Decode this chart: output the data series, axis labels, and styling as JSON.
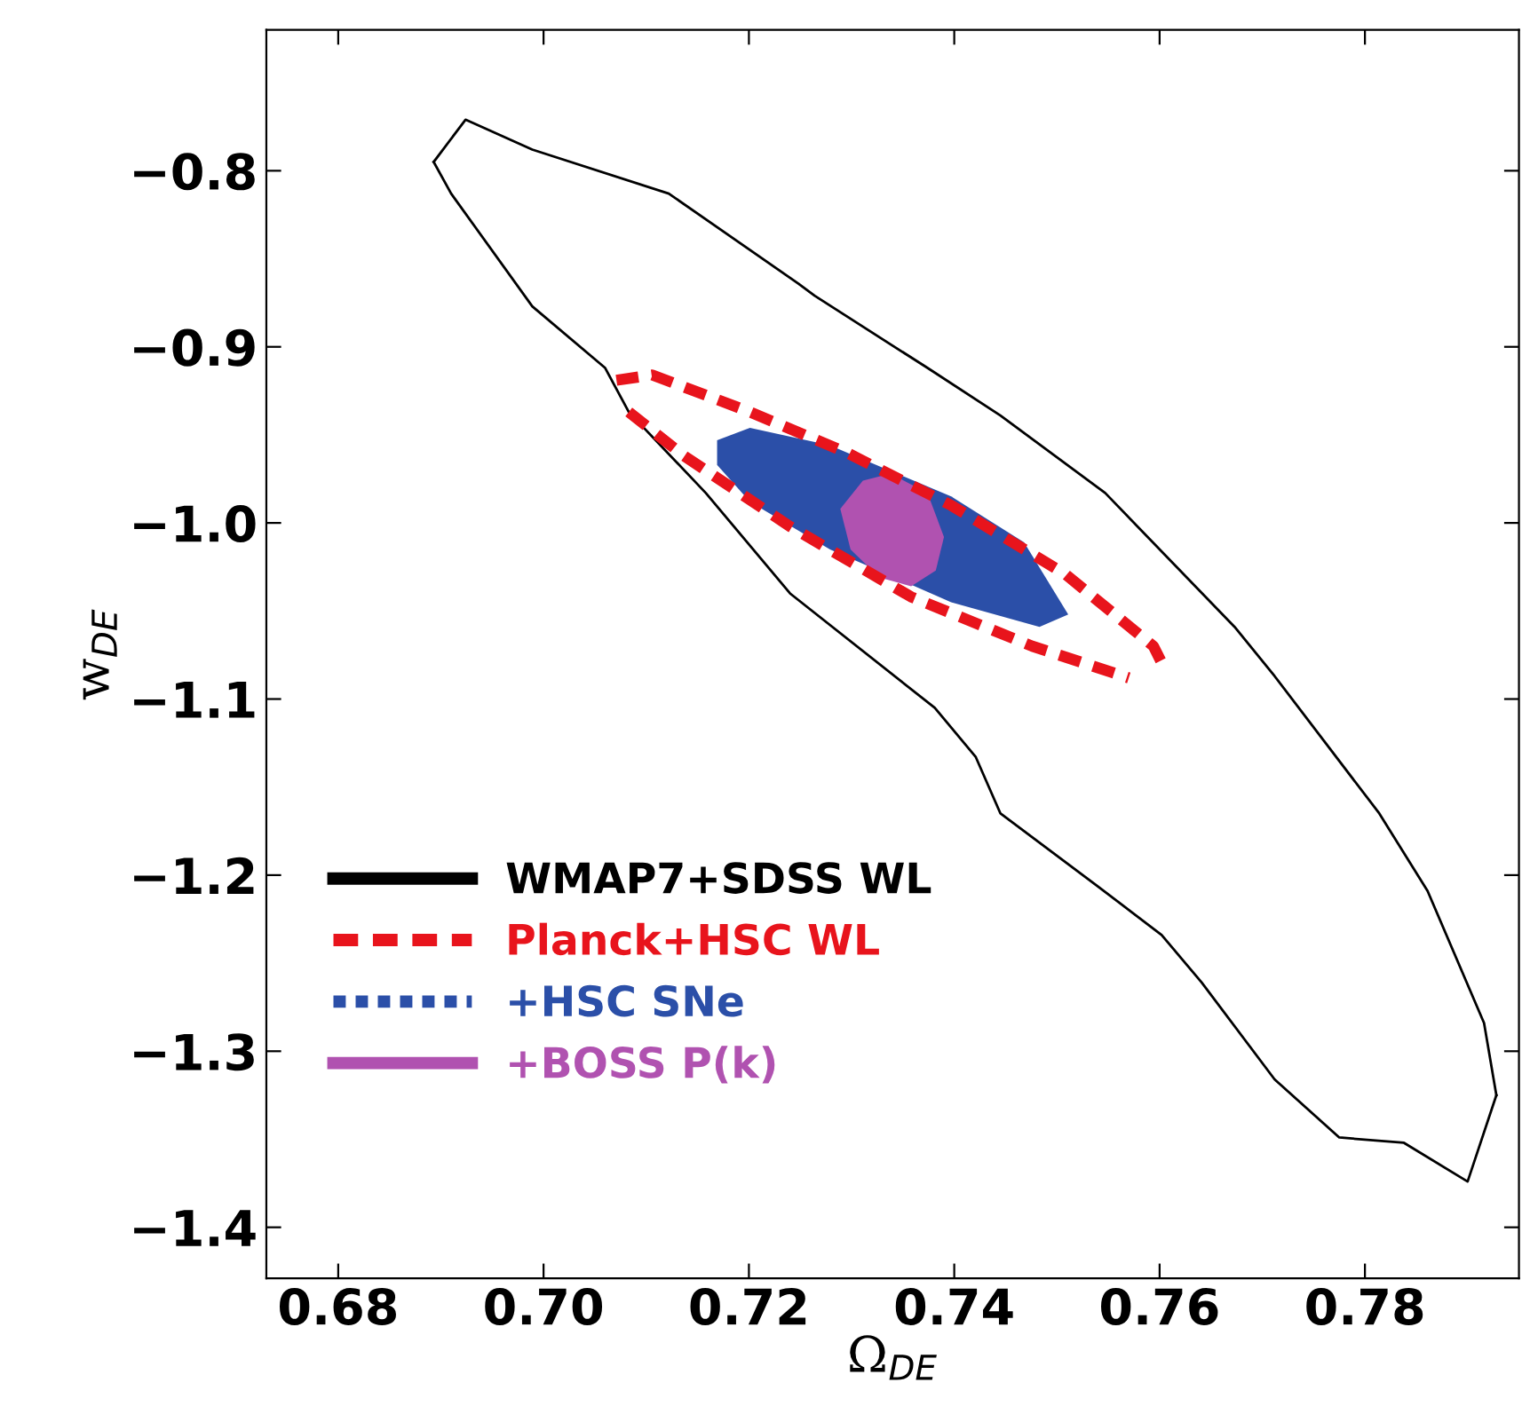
{
  "chart_data": {
    "type": "line",
    "xlabel": "Ω$_{DE}$",
    "ylabel": "w$_{DE}$",
    "xlim": [
      0.673,
      0.795
    ],
    "ylim": [
      -1.429,
      -0.72
    ],
    "xticks": [
      0.68,
      {
        "value": 0.7,
        "label": "0.70"
      },
      0.72,
      0.74,
      0.76,
      0.78
    ],
    "yticks": [
      {
        "value": -0.8,
        "label": "−0.8"
      },
      {
        "value": -0.9,
        "label": "−0.9"
      },
      {
        "value": -1.0,
        "label": "−1.0"
      },
      {
        "value": -1.1,
        "label": "−1.1"
      },
      {
        "value": -1.2,
        "label": "−1.2"
      },
      {
        "value": -1.3,
        "label": "−1.3"
      },
      {
        "value": -1.4,
        "label": "−1.4"
      }
    ],
    "grid": false,
    "legend": "bottom left",
    "marker": "none",
    "series": [
      {
        "name": "WMAP7+SDSS WL",
        "color": "#000000",
        "line_style": "solid",
        "x": [
          0.6893,
          0.6924,
          0.6989,
          0.7122,
          0.7248,
          0.7264,
          0.7374,
          0.7445,
          0.7547,
          0.7673,
          0.7712,
          0.7814,
          0.7861,
          0.7916,
          0.7928
        ],
        "values": [
          -0.795,
          -0.771,
          -0.788,
          -0.813,
          -0.864,
          -0.871,
          -0.912,
          -0.939,
          -0.983,
          -1.059,
          -1.087,
          -1.165,
          -1.209,
          -1.284,
          -1.325
        ]
      },
      {
        "color": "#000000",
        "line_style": "solid",
        "x": [
          0.6893,
          0.691,
          0.6989,
          0.706,
          0.7083,
          0.7158,
          0.724,
          0.7381,
          0.7421,
          0.7445,
          0.7539,
          0.7602,
          0.7641,
          0.7712,
          0.7775,
          0.7838,
          0.79,
          0.7928
        ],
        "values": [
          -0.795,
          -0.813,
          -0.877,
          -0.912,
          -0.937,
          -0.983,
          -1.04,
          -1.105,
          -1.133,
          -1.165,
          -1.206,
          -1.234,
          -1.261,
          -1.316,
          -1.349,
          -1.352,
          -1.374,
          -1.325
        ]
      },
      {
        "name": "Planck+HSC WL",
        "color": "#e8141c",
        "line_style": "dashed",
        "x": [
          0.7071,
          0.7106,
          0.7201,
          0.7295,
          0.7397,
          0.7508,
          0.7594,
          0.7606
        ],
        "values": [
          -0.919,
          -0.916,
          -0.937,
          -0.96,
          -0.99,
          -1.029,
          -1.07,
          -1.084
        ]
      },
      {
        "color": "#e8141c",
        "line_style": "dashed",
        "x": [
          0.7083,
          0.7137,
          0.724,
          0.7358,
          0.7476,
          0.757
        ],
        "values": [
          -0.937,
          -0.962,
          -1.002,
          -1.042,
          -1.07,
          -1.088
        ]
      },
      {
        "name": "+HSC SNe",
        "type": "area",
        "color": "#2b4fa8",
        "line_style": "dotted",
        "x": [
          0.7169,
          0.7201,
          0.7279,
          0.7397,
          0.7468,
          0.7511,
          0.7483,
          0.7397,
          0.7279,
          0.7201,
          0.7169
        ],
        "values": [
          -0.953,
          -0.946,
          -0.956,
          -0.985,
          -1.011,
          -1.052,
          -1.059,
          -1.045,
          -1.015,
          -0.988,
          -0.967
        ]
      },
      {
        "name": "+BOSS P(k)",
        "type": "area",
        "color": "#b052b0",
        "line_style": "solid",
        "x": [
          0.7289,
          0.7311,
          0.7338,
          0.7374,
          0.739,
          0.7382,
          0.7358,
          0.7327,
          0.7299,
          0.7289
        ],
        "values": [
          -0.992,
          -0.976,
          -0.972,
          -0.983,
          -1.008,
          -1.027,
          -1.036,
          -1.031,
          -1.015,
          -0.992
        ]
      }
    ]
  }
}
